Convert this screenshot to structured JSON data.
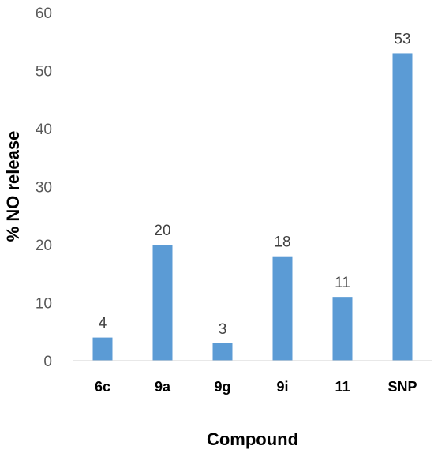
{
  "chart_data": {
    "type": "bar",
    "title": "",
    "xlabel": "Compound",
    "ylabel": "% NO release",
    "categories": [
      "6c",
      "9a",
      "9g",
      "9i",
      "11",
      "SNP"
    ],
    "values": [
      4,
      20,
      3,
      18,
      11,
      53
    ],
    "data_labels": [
      "4",
      "20",
      "3",
      "18",
      "11",
      "53"
    ],
    "ylim": [
      0,
      60
    ],
    "yticks": [
      0,
      10,
      20,
      30,
      40,
      50,
      60
    ],
    "grid": false,
    "legend": "none",
    "bar_color": "#5B9BD5"
  }
}
